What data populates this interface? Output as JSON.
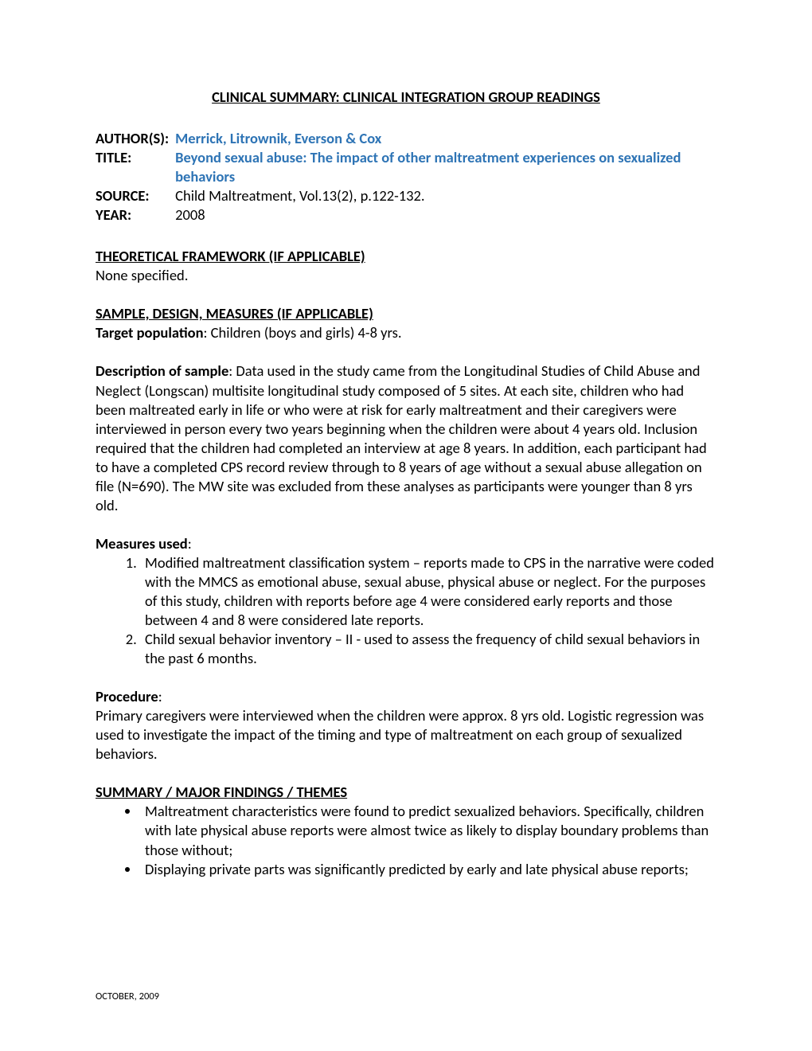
{
  "doc_title": "CLINICAL SUMMARY:  CLINICAL INTEGRATION GROUP READINGS ",
  "meta": {
    "author_label": "AUTHOR(S):",
    "author_value": "Merrick, Litrownik, Everson & Cox",
    "title_label": "TITLE:",
    "title_value": "Beyond sexual abuse: The impact of other maltreatment experiences on sexualized behaviors",
    "source_label": "SOURCE:",
    "source_value": "Child Maltreatment, Vol.13(2), p.122-132.",
    "year_label": "YEAR:",
    "year_value": "2008"
  },
  "theoretical": {
    "heading": "THEORETICAL FRAMEWORK (IF APPLICABLE)",
    "body": "None specified."
  },
  "sample": {
    "heading": "SAMPLE, DESIGN, MEASURES (IF APPLICABLE)",
    "target_label": "Target population",
    "target_value": ":  Children (boys and girls) 4-8 yrs.",
    "desc_label": "Description of sample",
    "desc_value": ": Data used in the study came from the Longitudinal Studies of Child Abuse and Neglect (Longscan) multisite longitudinal study composed of 5 sites.  At each site, children who had been maltreated early in life or who were at risk for early maltreatment and their caregivers were interviewed in person every two years beginning when the children were about 4 years old.  Inclusion required that the children had completed an interview at age 8 years.  In addition, each participant had to have a completed CPS record review through to 8 years of age without a sexual abuse allegation on file (N=690).  The MW site was excluded from these analyses as participants were younger than 8 yrs old.",
    "measures_label": "Measures used",
    "measures_colon": ":",
    "measures": [
      "Modified maltreatment classification system – reports made to CPS in the narrative were coded with the MMCS as emotional abuse, sexual abuse, physical abuse or neglect.  For the purposes of this study, children with reports before age 4 were considered early reports and those between 4 and 8 were considered late reports.",
      "Child sexual behavior inventory – II - used to assess the frequency of child sexual behaviors in the past 6 months."
    ],
    "procedure_label": "Procedure",
    "procedure_colon": ":",
    "procedure_value": "Primary caregivers were interviewed when the children were approx. 8 yrs old.  Logistic regression was used to investigate the impact of the timing and type of maltreatment on each group of sexualized behaviors."
  },
  "summary": {
    "heading": "SUMMARY / MAJOR FINDINGS / THEMES",
    "bullets": [
      "Maltreatment characteristics were found to predict sexualized behaviors.  Specifically, children with late physical abuse reports were almost twice as likely to display boundary problems than those without;",
      "Displaying private parts was significantly predicted by early and late physical abuse reports;"
    ]
  },
  "footer": "OCTOBER, 2009"
}
